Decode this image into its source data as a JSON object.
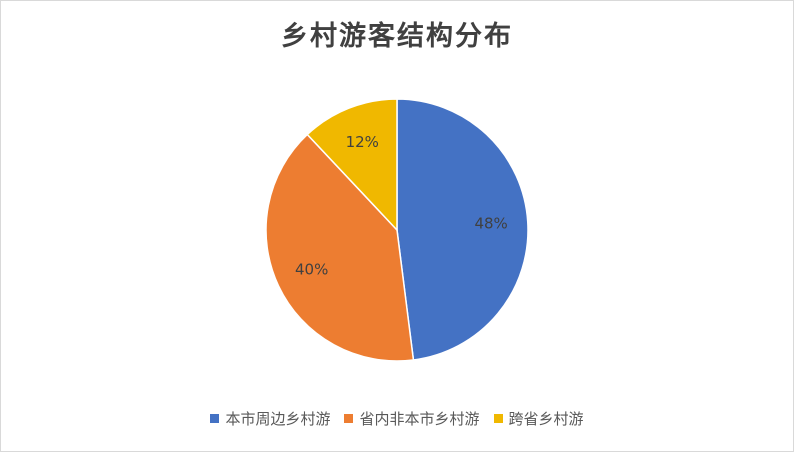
{
  "chart_data": {
    "type": "pie",
    "title": "乡村游客结构分布",
    "categories": [
      "本市周边乡村游",
      "省内非本市乡村游",
      "跨省乡村游"
    ],
    "values": [
      48,
      40,
      12
    ],
    "labels": [
      "48%",
      "40%",
      "12%"
    ],
    "colors": [
      "#4472C4",
      "#ED7D31",
      "#F0B800"
    ],
    "start_angle_deg": 0,
    "direction": "clockwise",
    "legend_position": "bottom"
  }
}
